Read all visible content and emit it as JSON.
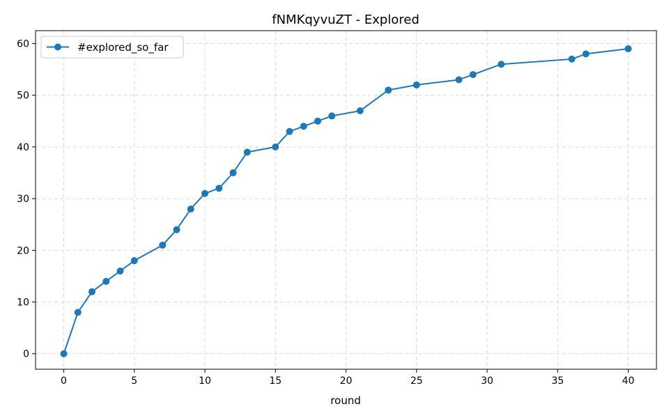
{
  "chart_data": {
    "type": "line",
    "title": "fNMKqyvuZT - Explored",
    "xlabel": "round",
    "ylabel": "",
    "xlim": [
      -2,
      42
    ],
    "ylim": [
      -3,
      62.5
    ],
    "xticks": [
      0,
      5,
      10,
      15,
      20,
      25,
      30,
      35,
      40
    ],
    "yticks": [
      0,
      10,
      20,
      30,
      40,
      50,
      60
    ],
    "grid": true,
    "legend_position": "top-left",
    "series": [
      {
        "name": "#explored_so_far",
        "color": "#1f77b4",
        "marker": "circle",
        "x": [
          0,
          1,
          2,
          3,
          4,
          5,
          7,
          8,
          9,
          10,
          11,
          12,
          13,
          15,
          16,
          17,
          18,
          19,
          21,
          23,
          25,
          28,
          29,
          31,
          36,
          37,
          40
        ],
        "y": [
          0,
          8,
          12,
          14,
          16,
          18,
          21,
          24,
          28,
          31,
          32,
          35,
          39,
          40,
          43,
          44,
          45,
          46,
          47,
          51,
          52,
          53,
          54,
          56,
          57,
          58,
          59
        ]
      }
    ]
  }
}
